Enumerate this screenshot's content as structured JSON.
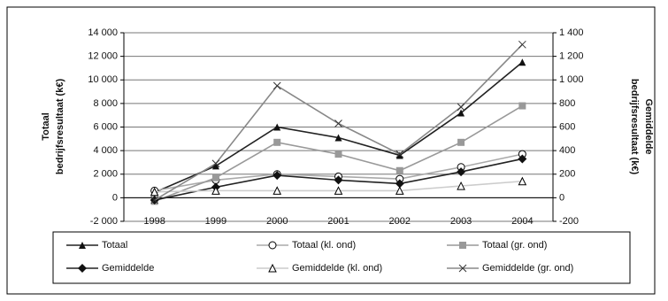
{
  "chart_data": {
    "type": "line",
    "y_label": [
      "Totaal",
      "bedrijfsresultaat (k€)"
    ],
    "y2_label": [
      "Gemiddelde",
      "bedrijfsresultaat (k€)"
    ],
    "categories": [
      "1998",
      "1999",
      "2000",
      "2001",
      "2002",
      "2003",
      "2004"
    ],
    "ylim": [
      -2000,
      14000
    ],
    "yticks": [
      {
        "value": -2000,
        "label": "-2 000"
      },
      0,
      {
        "value": 2000,
        "label": "2 000"
      },
      {
        "value": 4000,
        "label": "4 000"
      },
      {
        "value": 6000,
        "label": "6 000"
      },
      {
        "value": 8000,
        "label": "8 000"
      },
      {
        "value": 10000,
        "label": "10 000"
      },
      {
        "value": 12000,
        "label": "12 000"
      },
      {
        "value": 14000,
        "label": "14 000"
      }
    ],
    "y2lim": [
      -200,
      1400
    ],
    "y2ticks": [
      -200,
      0,
      200,
      400,
      600,
      800,
      {
        "value": 1000,
        "label": "1 000"
      },
      {
        "value": 1200,
        "label": "1 200"
      },
      {
        "value": 1400,
        "label": "1 400"
      }
    ],
    "grid": true,
    "series": [
      {
        "name": "Totaal",
        "color": "#222222",
        "marker": "triangle",
        "values": [
          450,
          2700,
          6000,
          5100,
          3600,
          7200,
          11500
        ]
      },
      {
        "name": "Totaal (kl. ond)",
        "color": "#aaaaaa",
        "marker": "circle",
        "values": [
          600,
          1500,
          2000,
          1800,
          1600,
          2600,
          3700
        ]
      },
      {
        "name": "Totaal (gr. ond)",
        "color": "#999999",
        "marker": "square",
        "values": [
          -300,
          1700,
          4700,
          3700,
          2300,
          4700,
          7800
        ]
      },
      {
        "name": "Gemiddelde",
        "color": "#222222",
        "marker": "diamond",
        "axis": "y2",
        "values": [
          -20,
          90,
          190,
          150,
          120,
          220,
          330
        ]
      },
      {
        "name": "Gemiddelde (kl. ond)",
        "color": "#cccccc",
        "marker": "open-triangle",
        "axis": "y2",
        "values": [
          50,
          60,
          60,
          60,
          60,
          100,
          140
        ]
      },
      {
        "name": "Gemiddelde (gr. ond)",
        "color": "#888888",
        "marker": "x",
        "axis": "y2",
        "values": [
          -20,
          290,
          950,
          630,
          370,
          770,
          1300
        ]
      }
    ]
  }
}
